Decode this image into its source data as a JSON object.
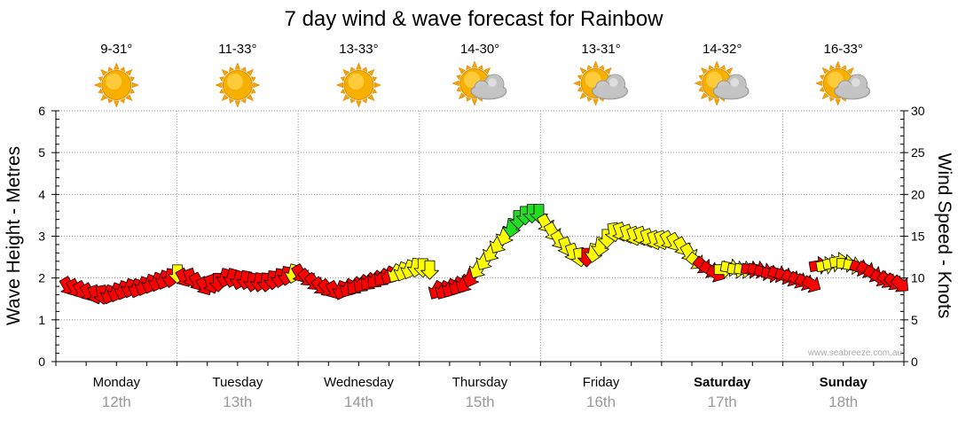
{
  "chart_data": {
    "type": "line",
    "title": "7 day wind & wave forecast for Rainbow",
    "ylabel_left": "Wave Height - Metres",
    "ylabel_right": "Wind Speed - Knots",
    "ylim_left": [
      0,
      6
    ],
    "ylim_right": [
      0,
      30
    ],
    "yticks_left": [
      "0",
      "1",
      "2",
      "3",
      "4",
      "5",
      "6"
    ],
    "yticks_right": [
      "0",
      "5",
      "10",
      "15",
      "20",
      "25",
      "30"
    ],
    "credit": "www.seabreeze.com.au",
    "days": [
      {
        "name": "Monday",
        "date": "12th",
        "temp": "9-31°",
        "weather": "sunny",
        "bold": false
      },
      {
        "name": "Tuesday",
        "date": "13th",
        "temp": "11-33°",
        "weather": "sunny",
        "bold": false
      },
      {
        "name": "Wednesday",
        "date": "14th",
        "temp": "13-33°",
        "weather": "sunny",
        "bold": false
      },
      {
        "name": "Thursday",
        "date": "15th",
        "temp": "14-30°",
        "weather": "partly-cloudy",
        "bold": false
      },
      {
        "name": "Friday",
        "date": "16th",
        "temp": "13-31°",
        "weather": "partly-cloudy",
        "bold": false
      },
      {
        "name": "Saturday",
        "date": "17th",
        "temp": "14-32°",
        "weather": "partly-cloudy",
        "bold": true
      },
      {
        "name": "Sunday",
        "date": "18th",
        "temp": "16-33°",
        "weather": "partly-cloudy",
        "bold": true
      }
    ],
    "colors": {
      "low": "#ff0000",
      "mid": "#ffff00",
      "high": "#22dd22",
      "stroke": "#000000",
      "grid": "#999999"
    },
    "wind_knots": [
      9,
      8,
      7,
      6.5,
      7,
      6,
      5.5,
      7,
      7.5,
      7,
      8,
      8.5,
      8.5,
      8.5,
      9,
      11,
      14.5,
      11,
      9,
      8.5,
      7.5,
      7,
      9,
      10,
      10.5,
      10.5,
      10,
      9.5,
      9.5,
      10,
      10.5,
      11,
      11.5,
      12,
      11.5,
      10,
      9.5,
      8.5,
      7.5,
      8,
      9,
      10,
      10,
      9.5,
      10,
      10.5,
      11,
      11.5,
      12,
      13,
      14,
      15,
      14.5,
      13,
      8,
      8.5,
      9,
      9,
      9.5,
      11.5,
      13,
      14,
      15,
      16,
      17,
      18,
      18.5,
      18.5,
      18.5,
      18.5,
      16.5,
      15.5,
      15,
      14,
      13,
      12,
      11.5,
      12,
      13,
      15,
      16.5,
      16.5,
      16,
      15.5,
      15.5,
      15,
      14.5,
      15,
      16,
      16,
      15,
      14,
      12,
      11,
      10.5,
      10,
      12,
      13,
      12.5,
      12,
      11.5,
      11.5,
      11.5,
      11.5,
      11,
      11,
      11,
      10.5,
      10,
      10,
      11.5,
      12,
      12.5,
      12.5,
      12.5,
      12,
      11.5,
      11.5,
      11.5,
      11,
      10.5,
      10,
      10
    ],
    "wind_dir_deg": [
      330,
      330,
      330,
      330,
      340,
      350,
      20,
      20,
      20,
      20,
      20,
      20,
      20,
      20,
      20,
      10,
      0,
      330,
      340,
      330,
      330,
      340,
      0,
      15,
      15,
      15,
      10,
      10,
      10,
      5,
      5,
      10,
      10,
      15,
      330,
      320,
      320,
      320,
      320,
      330,
      20,
      30,
      40,
      40,
      40,
      40,
      40,
      30,
      30,
      20,
      20,
      10,
      0,
      0,
      30,
      30,
      30,
      30,
      30,
      20,
      30,
      30,
      30,
      30,
      20,
      10,
      0,
      0,
      0,
      0,
      330,
      330,
      330,
      340,
      340,
      350,
      0,
      10,
      10,
      0,
      350,
      340,
      340,
      340,
      340,
      340,
      340,
      340,
      330,
      330,
      330,
      330,
      310,
      310,
      300,
      300,
      270,
      280,
      280,
      280,
      280,
      280,
      280,
      280,
      290,
      290,
      300,
      300,
      300,
      300,
      260,
      260,
      260,
      260,
      270,
      280,
      290,
      300,
      300,
      300,
      310,
      310,
      310
    ],
    "wave_height_m": [
      1.8,
      1.75,
      1.7,
      1.65,
      1.6,
      1.6,
      1.6,
      1.65,
      1.7,
      1.75,
      1.75,
      1.8,
      1.85,
      1.9,
      1.95,
      2.0,
      2.1,
      2.0,
      2.0,
      1.9,
      1.8,
      1.85,
      1.9,
      2.0,
      2.0,
      1.95,
      1.95,
      1.9,
      1.9,
      1.9,
      1.95,
      2.0,
      2.05,
      2.1,
      2.1,
      2.0,
      1.9,
      1.8,
      1.75,
      1.7,
      1.7,
      1.75,
      1.8,
      1.85,
      1.9,
      1.95,
      2.0,
      2.05,
      2.1,
      2.15,
      2.2,
      2.25,
      2.25,
      2.2,
      1.7,
      1.7,
      1.75,
      1.8,
      1.85,
      2.0,
      2.2,
      2.4,
      2.6,
      2.8,
      3.0,
      3.2,
      3.4,
      3.5,
      3.55,
      3.55,
      3.3,
      3.1,
      2.9,
      2.75,
      2.6,
      2.5,
      2.5,
      2.6,
      2.75,
      2.95,
      3.1,
      3.1,
      3.05,
      3.0,
      3.0,
      2.95,
      2.9,
      2.9,
      2.9,
      2.85,
      2.75,
      2.6,
      2.4,
      2.3,
      2.2,
      2.1,
      2.2,
      2.25,
      2.2,
      2.2,
      2.2,
      2.2,
      2.15,
      2.1,
      2.1,
      2.05,
      2.0,
      1.95,
      1.9,
      1.85,
      2.3,
      2.3,
      2.35,
      2.4,
      2.35,
      2.3,
      2.25,
      2.2,
      2.1,
      2.0,
      1.95,
      1.9,
      1.85
    ]
  }
}
